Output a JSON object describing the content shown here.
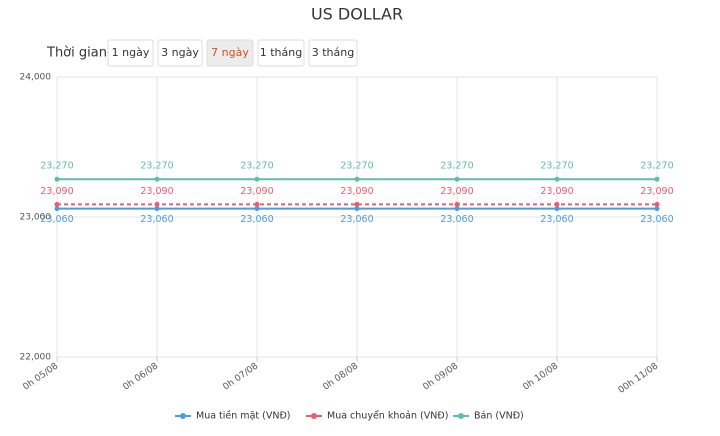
{
  "chart_data": {
    "type": "line",
    "title": "US DOLLAR",
    "range_label": "Thời gian:",
    "ranges": [
      "1 ngày",
      "3 ngày",
      "7 ngày",
      "1 tháng",
      "3 tháng"
    ],
    "selected_range": 2,
    "categories": [
      "0h 05/08",
      "0h 06/08",
      "0h 07/08",
      "0h 08/08",
      "0h 09/08",
      "0h 10/08",
      "00h 11/08"
    ],
    "series": [
      {
        "name": "Mua tiền mặt (VNĐ)",
        "color": "#4a9be4",
        "dashed": false,
        "label_position": "below",
        "values": [
          23060,
          23060,
          23060,
          23060,
          23060,
          23060,
          23060
        ],
        "value_labels": [
          "23,060",
          "23,060",
          "23,060",
          "23,060",
          "23,060",
          "23,060",
          "23,060"
        ]
      },
      {
        "name": "Mua chuyển khoản (VNĐ)",
        "color": "#ef5a70",
        "dashed": true,
        "label_position": "above",
        "values": [
          23090,
          23090,
          23090,
          23090,
          23090,
          23090,
          23090
        ],
        "value_labels": [
          "23,090",
          "23,090",
          "23,090",
          "23,090",
          "23,090",
          "23,090",
          "23,090"
        ]
      },
      {
        "name": "Bán (VNĐ)",
        "color": "#5cbdb3",
        "dashed": false,
        "label_position": "above",
        "values": [
          23270,
          23270,
          23270,
          23270,
          23270,
          23270,
          23270
        ],
        "value_labels": [
          "23,270",
          "23,270",
          "23,270",
          "23,270",
          "23,270",
          "23,270",
          "23,270"
        ]
      }
    ],
    "ylim": [
      22000,
      24000
    ],
    "yticks": [
      {
        "value": 22000,
        "label": "22,000"
      },
      {
        "value": 23000,
        "label": "23,000"
      },
      {
        "value": 24000,
        "label": "24,000"
      }
    ],
    "grid": true
  }
}
